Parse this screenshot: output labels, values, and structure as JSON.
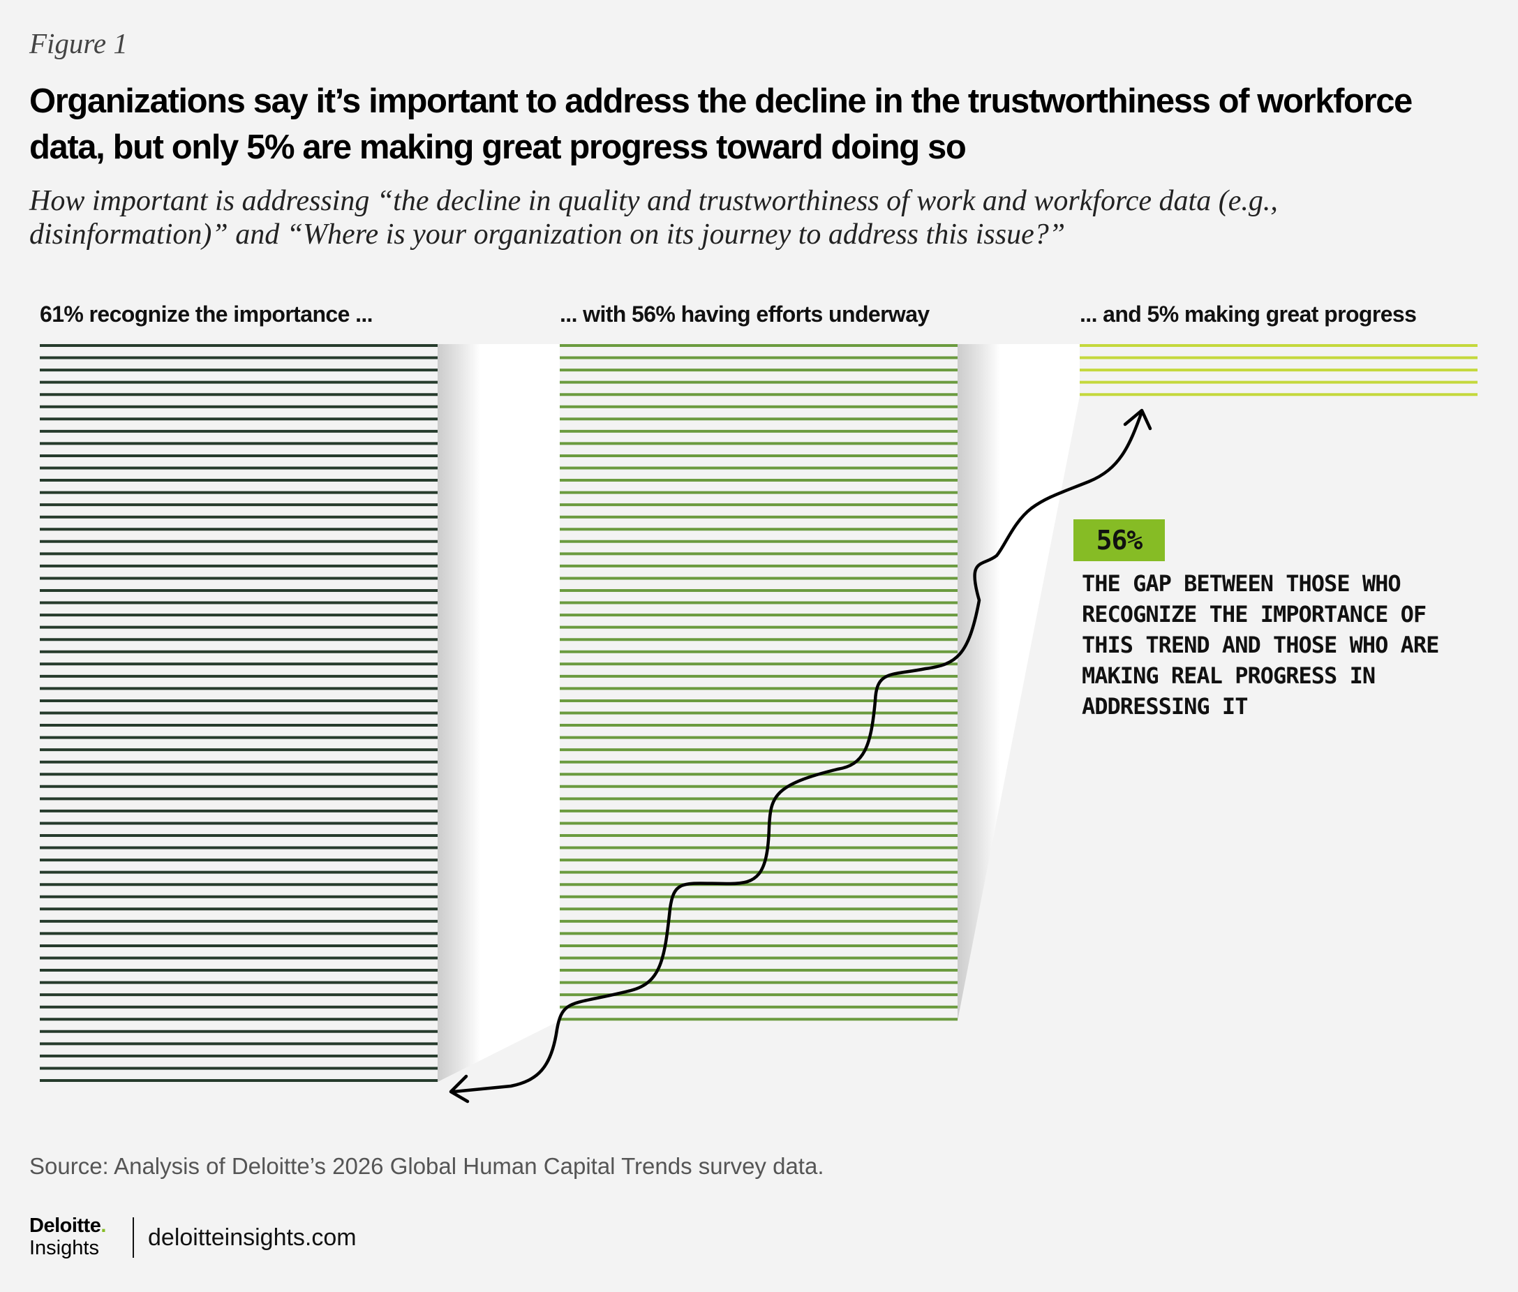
{
  "figure_label": "Figure 1",
  "title": "Organizations say it’s important to address the decline in the trustworthiness of workforce data, but only 5% are making great progress toward doing so",
  "subtitle": "How important is addressing “the decline in quality and trustworthiness of work and workforce data (e.g., disinformation)” and “Where is your organization on its journey to address this issue?”",
  "chart_data": {
    "type": "bar",
    "categories": [
      "61% recognize the importance ...",
      "... with 56% having efforts underway",
      "... and 5% making great progress"
    ],
    "values": [
      61,
      56,
      5
    ],
    "unit": "%",
    "colors": [
      "#263b2c",
      "#6b9b3f",
      "#c4d83c"
    ],
    "encoding": "one horizontal line per percentage point",
    "gap_annotation": {
      "value": "56%",
      "text": "The gap between those who recognize the importance of this trend and those who are making real progress in addressing it",
      "badge_color": "#86bc25"
    }
  },
  "source": "Source: Analysis of Deloitte’s 2026 Global Human Capital Trends survey data.",
  "footer": {
    "brand": "Deloitte",
    "brand_dot": ".",
    "brand_sub": "Insights",
    "url": "deloitteinsights.com"
  }
}
